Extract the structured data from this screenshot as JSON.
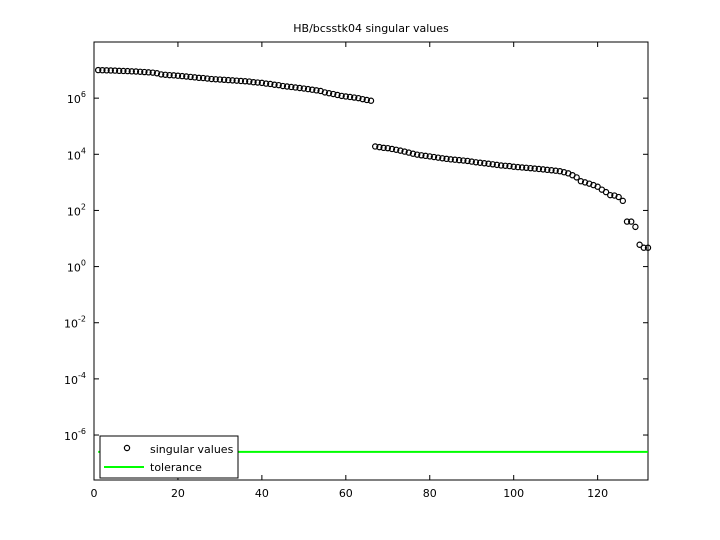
{
  "chart_data": {
    "type": "scatter",
    "title": "HB/bcsstk04 singular values",
    "yscale": "log",
    "xlim": [
      0,
      132
    ],
    "xticks": [
      0,
      20,
      40,
      60,
      80,
      100,
      120
    ],
    "ylim": [
      2.5e-08,
      100000000.0
    ],
    "yticks": [
      {
        "value": 1e-06,
        "label": "10^-6"
      },
      {
        "value": 0.0001,
        "label": "10^-4"
      },
      {
        "value": 0.01,
        "label": "10^-2"
      },
      {
        "value": 1,
        "label": "10^0"
      },
      {
        "value": 100,
        "label": "10^2"
      },
      {
        "value": 10000,
        "label": "10^4"
      },
      {
        "value": 1000000,
        "label": "10^6"
      }
    ],
    "legend": "lower left",
    "series": [
      {
        "name": "singular values",
        "color": "#000000",
        "style": "marker",
        "x": [
          1,
          2,
          3,
          4,
          5,
          6,
          7,
          8,
          9,
          10,
          11,
          12,
          13,
          14,
          15,
          16,
          17,
          18,
          19,
          20,
          21,
          22,
          23,
          24,
          25,
          26,
          27,
          28,
          29,
          30,
          31,
          32,
          33,
          34,
          35,
          36,
          37,
          38,
          39,
          40,
          41,
          42,
          43,
          44,
          45,
          46,
          47,
          48,
          49,
          50,
          51,
          52,
          53,
          54,
          55,
          56,
          57,
          58,
          59,
          60,
          61,
          62,
          63,
          64,
          65,
          66,
          67,
          68,
          69,
          70,
          71,
          72,
          73,
          74,
          75,
          76,
          77,
          78,
          79,
          80,
          81,
          82,
          83,
          84,
          85,
          86,
          87,
          88,
          89,
          90,
          91,
          92,
          93,
          94,
          95,
          96,
          97,
          98,
          99,
          100,
          101,
          102,
          103,
          104,
          105,
          106,
          107,
          108,
          109,
          110,
          111,
          112,
          113,
          114,
          115,
          116,
          117,
          118,
          119,
          120,
          121,
          122,
          123,
          124,
          125,
          126,
          127,
          128,
          129,
          130,
          131,
          132
        ],
        "values": [
          10000000.0,
          9900000.0,
          9800000.0,
          9700000.0,
          9600000.0,
          9400000.0,
          9300000.0,
          9200000.0,
          9000000.0,
          8900000.0,
          8700000.0,
          8500000.0,
          8300000.0,
          8100000.0,
          7700000.0,
          7000000.0,
          6800000.0,
          6600000.0,
          6500000.0,
          6300000.0,
          6100000.0,
          5900000.0,
          5700000.0,
          5500000.0,
          5300000.0,
          5200000.0,
          5000000.0,
          4800000.0,
          4700000.0,
          4600000.0,
          4500000.0,
          4400000.0,
          4300000.0,
          4200000.0,
          4100000.0,
          4000000.0,
          3900000.0,
          3700000.0,
          3600000.0,
          3500000.0,
          3300000.0,
          3200000.0,
          3000000.0,
          2900000.0,
          2700000.0,
          2600000.0,
          2500000.0,
          2400000.0,
          2300000.0,
          2200000.0,
          2100000.0,
          2000000.0,
          1900000.0,
          1800000.0,
          1600000.0,
          1500000.0,
          1400000.0,
          1300000.0,
          1200000.0,
          1150000.0,
          1100000.0,
          1050000.0,
          1000000.0,
          920000.0,
          860000.0,
          810000.0,
          19000.0,
          18000.0,
          17000.0,
          16500.0,
          15500.0,
          14500.0,
          13500.0,
          12500.0,
          11500.0,
          10500.0,
          9700,
          9200,
          8800,
          8400,
          8000,
          7600,
          7200,
          6900,
          6600,
          6400,
          6200,
          6000,
          5800,
          5500,
          5200,
          5000,
          4800,
          4600,
          4400,
          4200,
          4000,
          3900,
          3800,
          3600,
          3500,
          3400,
          3300,
          3200,
          3100,
          3000,
          2900,
          2800,
          2700,
          2600,
          2500,
          2300,
          2100,
          1800,
          1500,
          1100,
          1000,
          900,
          800,
          700,
          550,
          450,
          350,
          340,
          300,
          220,
          40,
          40,
          26,
          6,
          4.7,
          4.7
        ]
      },
      {
        "name": "tolerance",
        "color": "#00ff00",
        "style": "line",
        "x": [
          1,
          132
        ],
        "values": [
          2.5e-07,
          2.5e-07
        ]
      }
    ]
  }
}
